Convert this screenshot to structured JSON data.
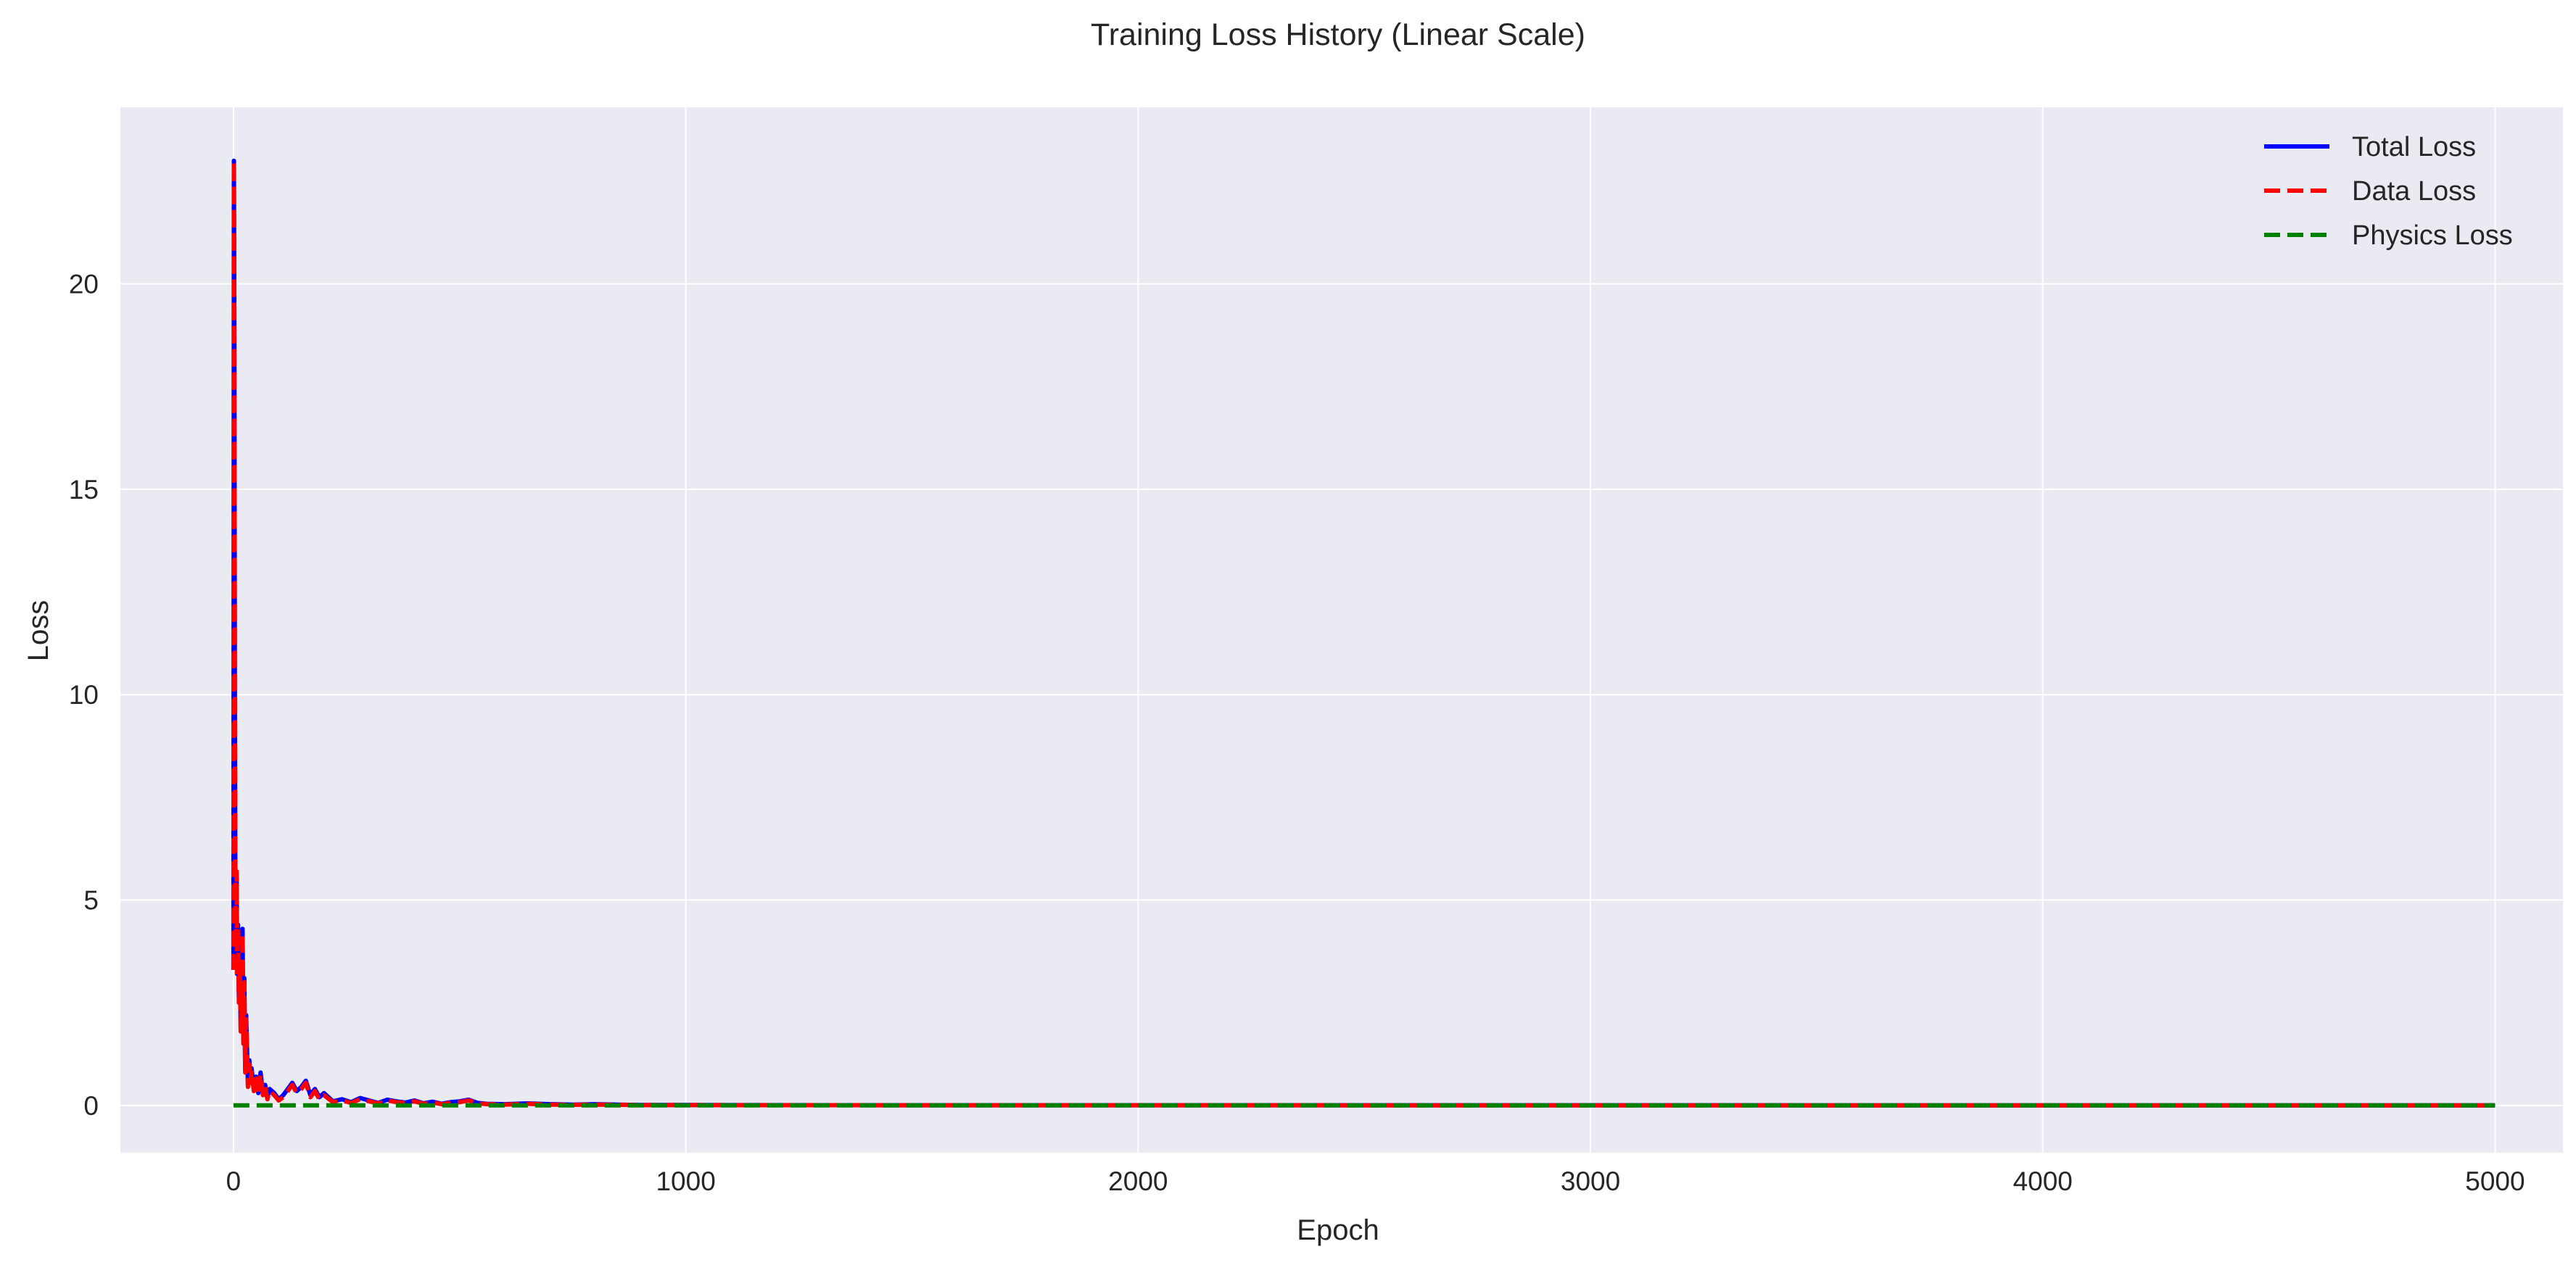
{
  "chart_data": {
    "type": "line",
    "title": "Training Loss History (Linear Scale)",
    "xlabel": "Epoch",
    "ylabel": "Loss",
    "xlim": [
      -250,
      5150
    ],
    "ylim": [
      -1.15,
      24.3
    ],
    "xticks": [
      0,
      1000,
      2000,
      3000,
      4000,
      5000
    ],
    "yticks": [
      0,
      5,
      10,
      15,
      20
    ],
    "xtick_labels": [
      "0",
      "1000",
      "2000",
      "3000",
      "4000",
      "5000"
    ],
    "ytick_labels": [
      "0",
      "5",
      "10",
      "15",
      "20"
    ],
    "grid": true,
    "legend_position": "top-right",
    "colors": {
      "background": "#eaeaf2",
      "grid": "#ffffff",
      "total": "#0000ff",
      "data": "#ff0000",
      "physics": "#008000"
    },
    "series": [
      {
        "name": "Total Loss",
        "style": "solid",
        "color": "#0000ff",
        "x": [
          0,
          1,
          2,
          3,
          4,
          5,
          6,
          7,
          8,
          10,
          12,
          14,
          16,
          18,
          20,
          22,
          24,
          26,
          28,
          30,
          32,
          35,
          38,
          40,
          45,
          50,
          55,
          60,
          65,
          70,
          75,
          80,
          90,
          100,
          110,
          120,
          130,
          140,
          150,
          160,
          170,
          180,
          190,
          200,
          220,
          240,
          260,
          280,
          300,
          320,
          340,
          360,
          380,
          400,
          420,
          440,
          460,
          480,
          500,
          520,
          540,
          560,
          600,
          650,
          700,
          750,
          800,
          850,
          900,
          1000,
          1500,
          2000,
          2500,
          3000,
          3500,
          4000,
          4500,
          5000
        ],
        "y": [
          3.3,
          23.0,
          18.5,
          10.2,
          6.0,
          4.8,
          3.9,
          5.6,
          3.2,
          4.4,
          2.6,
          3.5,
          1.9,
          2.8,
          4.3,
          1.6,
          3.1,
          0.9,
          2.2,
          1.4,
          0.5,
          1.1,
          0.6,
          0.9,
          0.4,
          0.7,
          0.3,
          0.8,
          0.3,
          0.5,
          0.2,
          0.4,
          0.3,
          0.15,
          0.25,
          0.4,
          0.55,
          0.35,
          0.45,
          0.6,
          0.25,
          0.4,
          0.2,
          0.3,
          0.1,
          0.15,
          0.08,
          0.18,
          0.12,
          0.06,
          0.14,
          0.1,
          0.07,
          0.12,
          0.05,
          0.09,
          0.04,
          0.08,
          0.1,
          0.14,
          0.06,
          0.04,
          0.03,
          0.05,
          0.03,
          0.02,
          0.03,
          0.02,
          0.01,
          0.01,
          0.005,
          0.005,
          0.004,
          0.004,
          0.003,
          0.003,
          0.003,
          0.003
        ]
      },
      {
        "name": "Data Loss",
        "style": "dashed",
        "color": "#ff0000",
        "x": [
          0,
          1,
          2,
          3,
          4,
          5,
          6,
          7,
          8,
          10,
          12,
          14,
          16,
          18,
          20,
          22,
          24,
          26,
          28,
          30,
          32,
          35,
          38,
          40,
          45,
          50,
          55,
          60,
          65,
          70,
          75,
          80,
          90,
          100,
          110,
          120,
          130,
          140,
          150,
          160,
          170,
          180,
          190,
          200,
          220,
          240,
          260,
          280,
          300,
          320,
          340,
          360,
          380,
          400,
          420,
          440,
          460,
          480,
          500,
          520,
          540,
          560,
          600,
          650,
          700,
          750,
          800,
          850,
          900,
          1000,
          1500,
          2000,
          2500,
          3000,
          3500,
          4000,
          4500,
          5000
        ],
        "y": [
          3.3,
          23.0,
          18.4,
          10.1,
          5.9,
          4.7,
          3.8,
          5.7,
          3.1,
          4.3,
          2.5,
          3.4,
          1.8,
          2.7,
          4.2,
          1.5,
          3.0,
          0.8,
          2.1,
          1.3,
          0.45,
          1.0,
          0.55,
          0.85,
          0.35,
          0.65,
          0.25,
          0.75,
          0.25,
          0.45,
          0.15,
          0.35,
          0.25,
          0.12,
          0.2,
          0.35,
          0.5,
          0.3,
          0.4,
          0.55,
          0.2,
          0.35,
          0.15,
          0.25,
          0.08,
          0.12,
          0.06,
          0.15,
          0.1,
          0.05,
          0.12,
          0.08,
          0.06,
          0.1,
          0.04,
          0.07,
          0.03,
          0.06,
          0.08,
          0.12,
          0.05,
          0.03,
          0.02,
          0.04,
          0.02,
          0.015,
          0.02,
          0.015,
          0.008,
          0.008,
          0.004,
          0.004,
          0.003,
          0.003,
          0.002,
          0.002,
          0.002,
          0.002
        ]
      },
      {
        "name": "Physics Loss",
        "style": "dashed",
        "color": "#008000",
        "x": [
          0,
          100,
          500,
          1000,
          2000,
          3000,
          4000,
          5000
        ],
        "y": [
          0.002,
          0.001,
          0.001,
          0.001,
          0.001,
          0.001,
          0.001,
          0.001
        ]
      }
    ]
  }
}
